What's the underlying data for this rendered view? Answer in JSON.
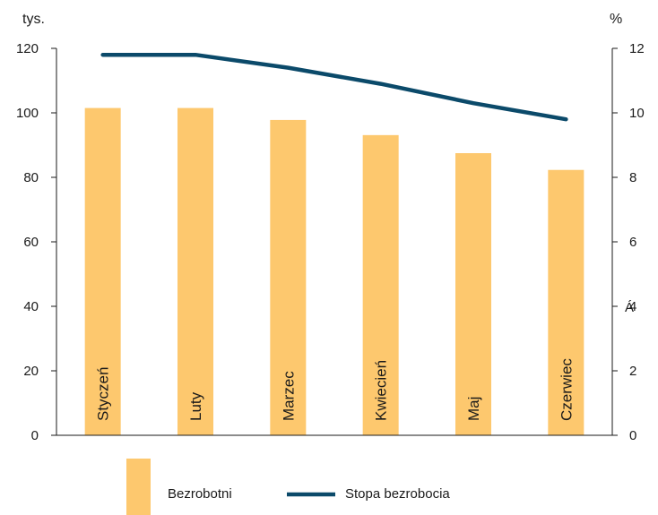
{
  "chart_data": {
    "type": "bar",
    "categories": [
      "Styczeń",
      "Luty",
      "Marzec",
      "Kwiecień",
      "Maj",
      "Czerwiec"
    ],
    "series": [
      {
        "name": "Bezrobotni",
        "type": "bar",
        "axis": "left",
        "color": "#FDC86E",
        "values": [
          101.5,
          101.5,
          97.8,
          93.1,
          87.5,
          82.3
        ]
      },
      {
        "name": "Stopa bezrobocia",
        "type": "line",
        "axis": "right",
        "color": "#0B4A6A",
        "values": [
          11.8,
          11.8,
          11.4,
          10.9,
          10.3,
          9.8
        ]
      }
    ],
    "y_left": {
      "unit": "tys.",
      "range": [
        0,
        120
      ],
      "ticks": [
        "0",
        "20",
        "40",
        "60",
        "80",
        "100",
        "120"
      ]
    },
    "y_right": {
      "unit": "%",
      "range": [
        0,
        12
      ],
      "ticks": [
        "0",
        "2",
        "4",
        "6",
        "8",
        "10",
        "12"
      ]
    },
    "stray_mark": "Á",
    "grid": false,
    "legend_position": "bottom"
  }
}
